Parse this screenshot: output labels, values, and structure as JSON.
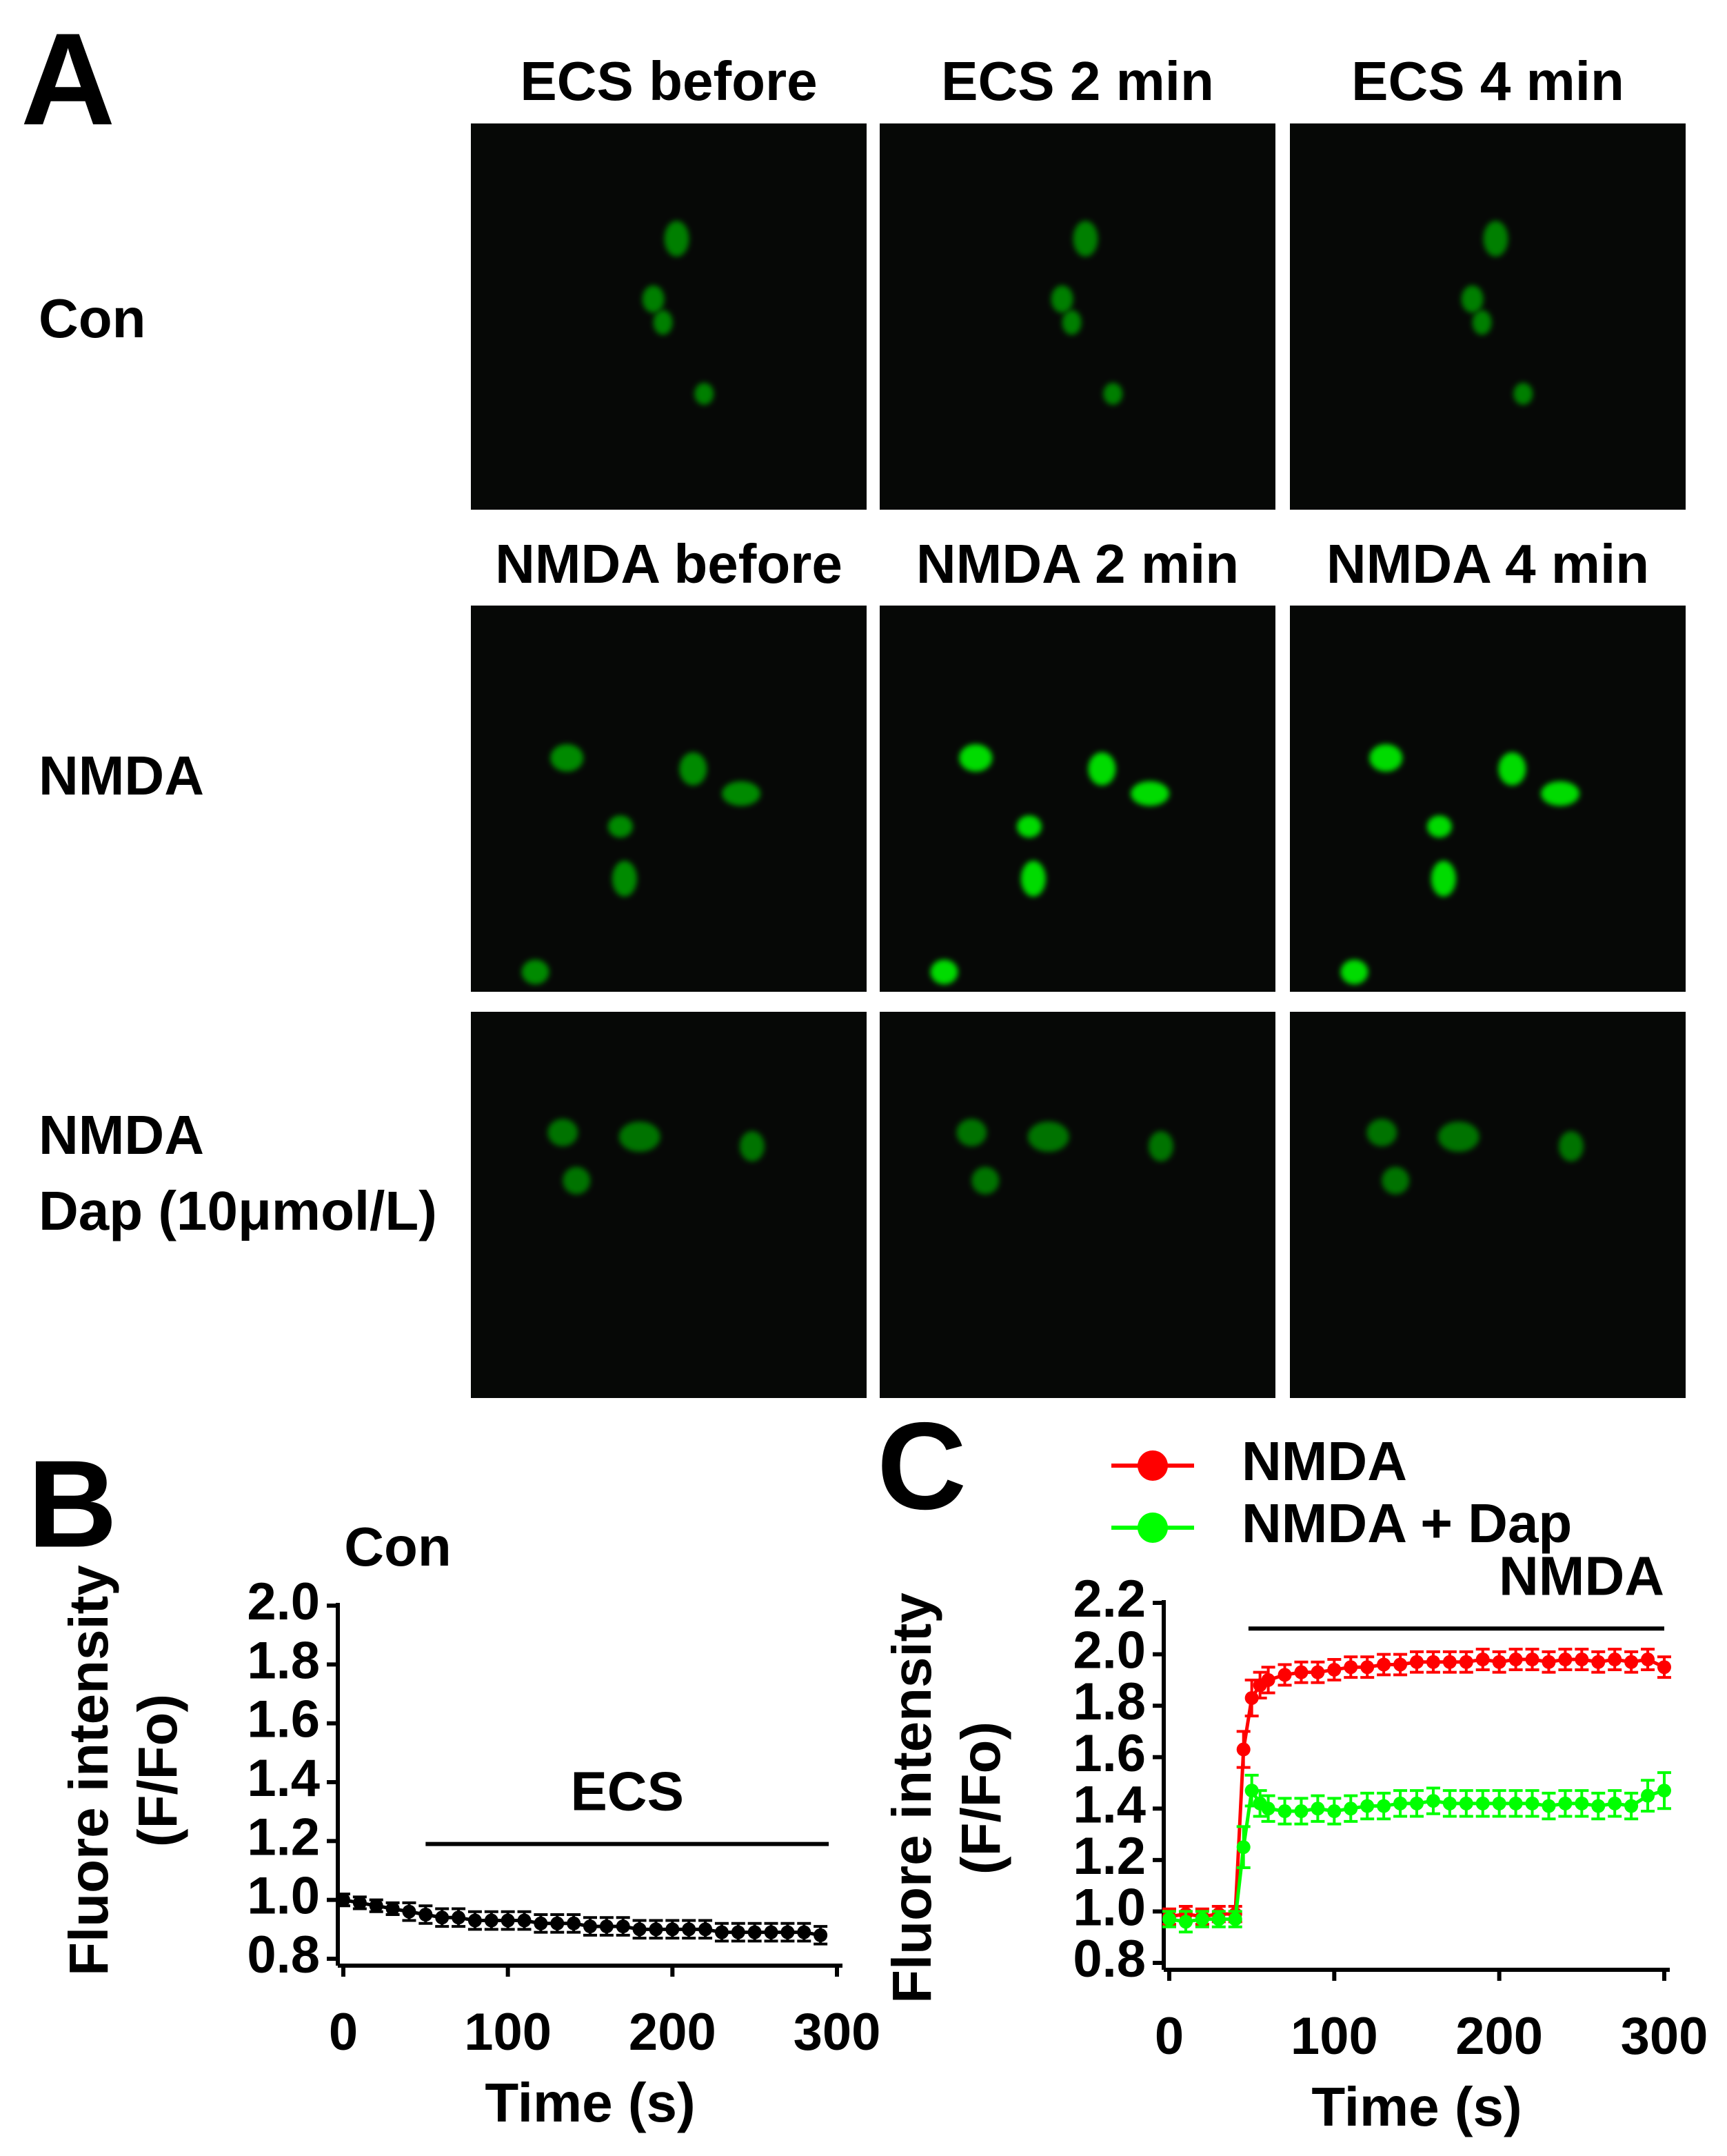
{
  "panel_a": {
    "label": "A",
    "rows": [
      {
        "label": [
          "Con"
        ],
        "titles": [
          "ECS before",
          "ECS 2 min",
          "ECS 4 min"
        ]
      },
      {
        "label": [
          "NMDA"
        ],
        "titles": [
          "NMDA before",
          "NMDA 2 min",
          "NMDA 4 min"
        ]
      },
      {
        "label": [
          "NMDA",
          "Dap (10μmol/L)"
        ]
      }
    ]
  },
  "chart_data": [
    {
      "type": "line",
      "panel_label": "B",
      "title": "Con",
      "xlabel": "Time (s)",
      "ylabel": [
        "Fluore  intensity",
        "(F/Fo)"
      ],
      "x": [
        0,
        10,
        20,
        30,
        40,
        50,
        60,
        70,
        80,
        90,
        100,
        110,
        120,
        130,
        140,
        150,
        160,
        170,
        180,
        190,
        200,
        210,
        220,
        230,
        240,
        250,
        260,
        270,
        280,
        290
      ],
      "series": [
        {
          "color": "#000000",
          "values": [
            1.0,
            0.99,
            0.98,
            0.97,
            0.96,
            0.95,
            0.94,
            0.94,
            0.93,
            0.93,
            0.93,
            0.93,
            0.92,
            0.92,
            0.92,
            0.91,
            0.91,
            0.91,
            0.9,
            0.9,
            0.9,
            0.9,
            0.9,
            0.89,
            0.89,
            0.89,
            0.89,
            0.89,
            0.89,
            0.88
          ],
          "errors": [
            0.02,
            0.02,
            0.02,
            0.02,
            0.03,
            0.03,
            0.03,
            0.03,
            0.03,
            0.03,
            0.03,
            0.03,
            0.03,
            0.03,
            0.03,
            0.03,
            0.03,
            0.03,
            0.03,
            0.03,
            0.03,
            0.03,
            0.03,
            0.03,
            0.03,
            0.03,
            0.03,
            0.03,
            0.03,
            0.03
          ]
        }
      ],
      "xlim": [
        0,
        300
      ],
      "xticks": [
        0,
        100,
        200,
        300
      ],
      "ylim": [
        0.8,
        2.0
      ],
      "yticks": [
        0.8,
        {
          "value": 1.0,
          "label": "1.0"
        },
        1.2,
        1.4,
        1.6,
        1.8,
        {
          "value": 2.0,
          "label": "2.0"
        }
      ],
      "annotations": [
        {
          "text": "ECS",
          "x": [
            50,
            295
          ],
          "y": 1.19
        }
      ]
    },
    {
      "type": "line",
      "panel_label": "C",
      "xlabel": "Time (s)",
      "ylabel": [
        "Fluore  intensity",
        "(F/Fo)"
      ],
      "legend": "top",
      "x": [
        0,
        10,
        20,
        30,
        40,
        45,
        50,
        55,
        60,
        70,
        80,
        90,
        100,
        110,
        120,
        130,
        140,
        150,
        160,
        170,
        180,
        190,
        200,
        210,
        220,
        230,
        240,
        250,
        260,
        270,
        280,
        290,
        300
      ],
      "series": [
        {
          "name": "NMDA",
          "color": "#ff0000",
          "values": [
            0.98,
            0.99,
            0.98,
            0.99,
            0.99,
            1.63,
            1.83,
            1.88,
            1.9,
            1.92,
            1.93,
            1.93,
            1.94,
            1.95,
            1.95,
            1.96,
            1.96,
            1.97,
            1.97,
            1.97,
            1.97,
            1.98,
            1.97,
            1.98,
            1.98,
            1.97,
            1.98,
            1.98,
            1.97,
            1.98,
            1.97,
            1.98,
            1.95
          ],
          "errors": [
            0.03,
            0.03,
            0.03,
            0.03,
            0.03,
            0.07,
            0.07,
            0.05,
            0.05,
            0.04,
            0.04,
            0.04,
            0.04,
            0.04,
            0.04,
            0.04,
            0.04,
            0.04,
            0.04,
            0.04,
            0.04,
            0.04,
            0.04,
            0.04,
            0.04,
            0.04,
            0.04,
            0.04,
            0.04,
            0.04,
            0.04,
            0.04,
            0.04
          ]
        },
        {
          "name": "NMDA + Dap",
          "color": "#00ff00",
          "values": [
            0.97,
            0.96,
            0.97,
            0.97,
            0.97,
            1.25,
            1.47,
            1.42,
            1.4,
            1.39,
            1.39,
            1.4,
            1.39,
            1.4,
            1.41,
            1.41,
            1.42,
            1.42,
            1.43,
            1.42,
            1.42,
            1.42,
            1.42,
            1.42,
            1.42,
            1.41,
            1.42,
            1.42,
            1.41,
            1.42,
            1.41,
            1.45,
            1.47
          ],
          "errors": [
            0.03,
            0.04,
            0.03,
            0.03,
            0.03,
            0.08,
            0.06,
            0.05,
            0.05,
            0.05,
            0.05,
            0.05,
            0.05,
            0.05,
            0.05,
            0.05,
            0.05,
            0.05,
            0.05,
            0.05,
            0.05,
            0.05,
            0.05,
            0.05,
            0.05,
            0.05,
            0.05,
            0.05,
            0.05,
            0.05,
            0.05,
            0.06,
            0.07
          ]
        }
      ],
      "xlim": [
        0,
        300
      ],
      "xticks": [
        0,
        100,
        200,
        300
      ],
      "ylim": [
        0.8,
        2.2
      ],
      "yticks": [
        0.8,
        {
          "value": 1.0,
          "label": "1.0"
        },
        1.2,
        1.4,
        1.6,
        1.8,
        {
          "value": 2.0,
          "label": "2.0"
        },
        2.2
      ],
      "annotations": [
        {
          "text": "NMDA",
          "x": [
            48,
            300
          ],
          "y": 2.1
        }
      ]
    }
  ]
}
